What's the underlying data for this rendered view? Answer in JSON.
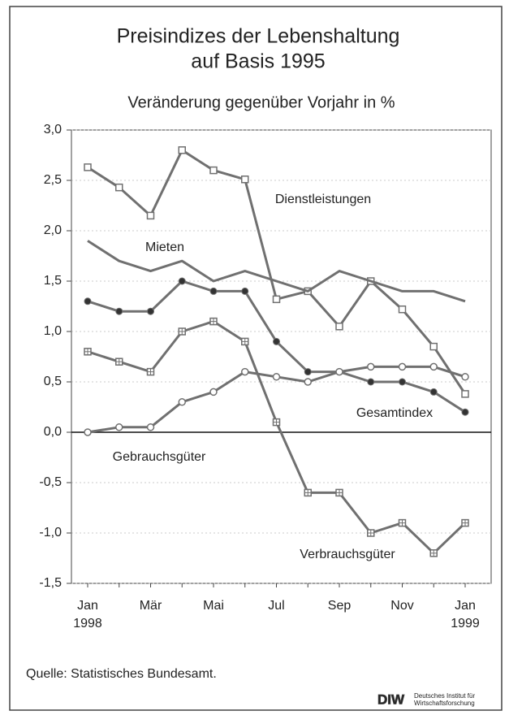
{
  "chart_data": {
    "type": "line",
    "title": "Preisindizes der Lebenshaltung",
    "title_line2": "auf Basis 1995",
    "subtitle": "Veränderung gegenüber Vorjahr in %",
    "categories": [
      "Jan\n1998",
      null,
      "Mär",
      null,
      "Mai",
      null,
      "Jul",
      null,
      "Sep",
      null,
      "Nov",
      null,
      "Jan\n1999"
    ],
    "ylim": [
      -1.5,
      3.0
    ],
    "yticks": [
      {
        "value": -1.5,
        "label": "-1,5"
      },
      {
        "value": -1.0,
        "label": "-1,0"
      },
      {
        "value": -0.5,
        "label": "-0,5"
      },
      {
        "value": 0,
        "label": "0,0"
      },
      {
        "value": 0.5,
        "label": "0,5"
      },
      {
        "value": 1.0,
        "label": "1,0"
      },
      {
        "value": 1.5,
        "label": "1,5"
      },
      {
        "value": 2.0,
        "label": "2,0"
      },
      {
        "value": 2.5,
        "label": "2,5"
      },
      {
        "value": 3.0,
        "label": "3,0"
      }
    ],
    "grid": true,
    "series": [
      {
        "name": "Dienstleistungen",
        "color": "#707070",
        "marker": "square",
        "values": [
          2.63,
          2.43,
          2.15,
          2.8,
          2.6,
          2.51,
          1.32,
          1.4,
          1.05,
          1.5,
          1.22,
          0.85,
          0.38
        ]
      },
      {
        "name": "Mieten",
        "color": "#707070",
        "marker": "none",
        "values": [
          1.9,
          1.7,
          1.6,
          1.7,
          1.5,
          1.6,
          1.5,
          1.4,
          1.6,
          1.5,
          1.4,
          1.4,
          1.3
        ]
      },
      {
        "name": "Gesamtindex",
        "color": "#707070",
        "marker": "filled-circle",
        "values": [
          1.3,
          1.2,
          1.2,
          1.5,
          1.4,
          1.4,
          0.9,
          0.6,
          0.6,
          0.5,
          0.5,
          0.4,
          0.2
        ]
      },
      {
        "name": "Verbrauchsgüter",
        "color": "#707070",
        "marker": "crossed-square",
        "values": [
          0.8,
          0.7,
          0.6,
          1.0,
          1.1,
          0.9,
          0.1,
          -0.6,
          -0.6,
          -1.0,
          -0.9,
          -1.2,
          -0.9
        ]
      },
      {
        "name": "Gebrauchsgüter",
        "color": "#707070",
        "marker": "circle",
        "values": [
          0.0,
          0.05,
          0.05,
          0.3,
          0.4,
          0.6,
          0.55,
          0.5,
          0.6,
          0.65,
          0.65,
          0.65,
          0.55
        ]
      }
    ],
    "source": "Quelle: Statistisches Bundesamt.",
    "logo": "DIW",
    "logo_text_1": "Deutsches Institut für",
    "logo_text_2": "Wirtschaftsforschung"
  }
}
